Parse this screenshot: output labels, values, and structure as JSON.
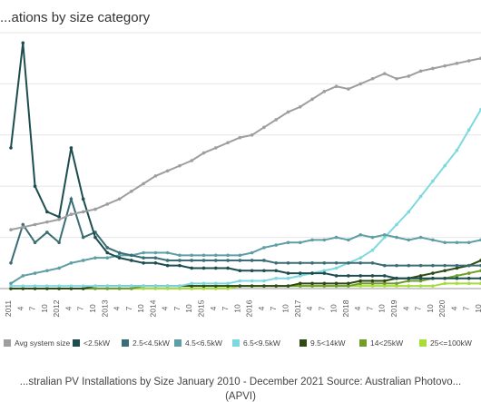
{
  "title": "...ations by size category",
  "caption": "...stralian PV Installations by Size January 2010 - December 2021 Source: Australian Photovo...",
  "caption_line2": "(APVI)",
  "chart_data": {
    "type": "line",
    "xlabel": "",
    "ylabel": "",
    "grid": true,
    "legend_position": "bottom",
    "categories": [
      "2011",
      "4",
      "7",
      "10",
      "2012",
      "4",
      "7",
      "10",
      "2013",
      "4",
      "7",
      "10",
      "2014",
      "4",
      "7",
      "10",
      "2015",
      "4",
      "7",
      "10",
      "2016",
      "4",
      "7",
      "10",
      "2017",
      "4",
      "7",
      "10",
      "2018",
      "4",
      "7",
      "10",
      "2019",
      "4",
      "7",
      "10",
      "2020",
      "4",
      "7",
      "10"
    ],
    "series": [
      {
        "name": "Avg system size",
        "color": "#9e9e9e",
        "values": [
          23,
          24,
          25,
          26,
          27,
          29,
          30,
          31,
          33,
          35,
          38,
          41,
          44,
          46,
          48,
          50,
          53,
          55,
          57,
          59,
          60,
          63,
          66,
          69,
          71,
          74,
          77,
          79,
          78,
          80,
          82,
          84,
          82,
          83,
          85,
          86,
          87,
          88,
          89,
          90
        ]
      },
      {
        "name": "<2.5kW",
        "color": "#1e4d50",
        "values": [
          55,
          96,
          40,
          30,
          28,
          55,
          35,
          20,
          14,
          12,
          11,
          10,
          10,
          9,
          9,
          8,
          8,
          8,
          8,
          7,
          7,
          7,
          7,
          6,
          6,
          6,
          6,
          5,
          5,
          5,
          5,
          5,
          4,
          4,
          4,
          4,
          4,
          4,
          4,
          4
        ]
      },
      {
        "name": "2.5<4.5kW",
        "color": "#3b6e74",
        "values": [
          10,
          25,
          18,
          22,
          18,
          35,
          20,
          22,
          16,
          14,
          13,
          12,
          12,
          11,
          11,
          11,
          11,
          11,
          11,
          11,
          11,
          11,
          10,
          10,
          10,
          10,
          10,
          10,
          10,
          10,
          10,
          9,
          9,
          9,
          9,
          9,
          9,
          9,
          9,
          9
        ]
      },
      {
        "name": "4.5<6.5kW",
        "color": "#5f9ea5",
        "values": [
          2,
          5,
          6,
          7,
          8,
          10,
          11,
          12,
          12,
          13,
          13,
          14,
          14,
          14,
          13,
          13,
          13,
          13,
          13,
          13,
          14,
          16,
          17,
          18,
          18,
          19,
          19,
          20,
          19,
          21,
          20,
          21,
          20,
          19,
          20,
          19,
          18,
          18,
          18,
          19
        ]
      },
      {
        "name": "6.5<9.5kW",
        "color": "#7ed9df",
        "values": [
          1,
          1,
          1,
          1,
          1,
          1,
          1,
          1,
          1,
          1,
          1,
          1,
          1,
          1,
          1,
          2,
          2,
          2,
          2,
          3,
          3,
          3,
          4,
          4,
          5,
          6,
          7,
          8,
          10,
          12,
          15,
          20,
          25,
          30,
          36,
          42,
          48,
          54,
          62,
          70
        ]
      },
      {
        "name": "9.5<14kW",
        "color": "#2f4a14",
        "values": [
          0,
          0,
          0,
          0,
          0,
          0,
          0,
          1,
          1,
          1,
          1,
          1,
          1,
          1,
          1,
          1,
          1,
          1,
          1,
          1,
          1,
          1,
          1,
          1,
          2,
          2,
          2,
          2,
          2,
          3,
          3,
          3,
          4,
          4,
          5,
          6,
          7,
          8,
          9,
          11
        ]
      },
      {
        "name": "14<25kW",
        "color": "#6f9e2a",
        "values": [
          0,
          0,
          0,
          0,
          0,
          0,
          0,
          0,
          0,
          0,
          0,
          1,
          1,
          1,
          1,
          1,
          1,
          1,
          1,
          1,
          1,
          1,
          1,
          1,
          1,
          1,
          1,
          1,
          1,
          2,
          2,
          2,
          2,
          3,
          3,
          4,
          4,
          5,
          6,
          7
        ]
      },
      {
        "name": "25<=100kW",
        "color": "#a8dc3c",
        "values": [
          0,
          0,
          0,
          0,
          0,
          0,
          0,
          0,
          0,
          0,
          0,
          0,
          0,
          0,
          0,
          0,
          0,
          0,
          0,
          1,
          1,
          1,
          1,
          1,
          1,
          1,
          1,
          1,
          1,
          1,
          1,
          1,
          1,
          1,
          1,
          1,
          2,
          2,
          2,
          2
        ]
      }
    ]
  }
}
